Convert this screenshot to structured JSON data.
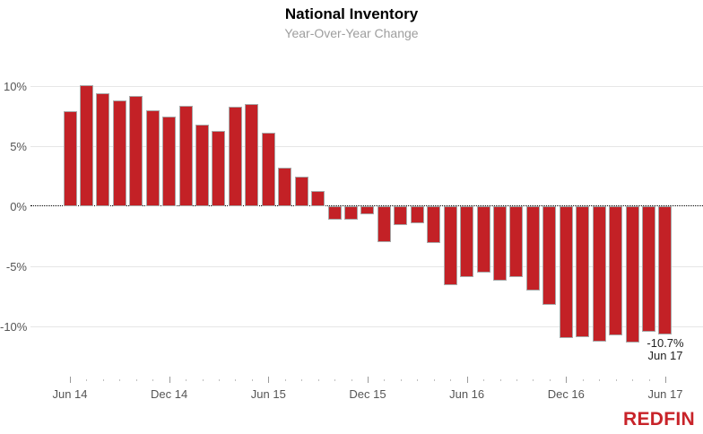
{
  "header": {
    "title": "National Inventory",
    "subtitle": "Year-Over-Year Change"
  },
  "annotation": {
    "value_label": "-10.7%",
    "date_label": "Jun 17"
  },
  "branding": {
    "logo_text": "REDFIN",
    "logo_color": "#c82329"
  },
  "chart_data": {
    "type": "bar",
    "title": "National Inventory",
    "subtitle": "Year-Over-Year Change",
    "categories": [
      "Jun 14",
      "Jul 14",
      "Aug 14",
      "Sep 14",
      "Oct 14",
      "Nov 14",
      "Dec 14",
      "Jan 15",
      "Feb 15",
      "Mar 15",
      "Apr 15",
      "May 15",
      "Jun 15",
      "Jul 15",
      "Aug 15",
      "Sep 15",
      "Oct 15",
      "Nov 15",
      "Dec 15",
      "Jan 16",
      "Feb 16",
      "Mar 16",
      "Apr 16",
      "May 16",
      "Jun 16",
      "Jul 16",
      "Aug 16",
      "Sep 16",
      "Oct 16",
      "Nov 16",
      "Dec 16",
      "Jan 17",
      "Feb 17",
      "Mar 17",
      "Apr 17",
      "May 17",
      "Jun 17"
    ],
    "values": [
      7.9,
      10.1,
      9.4,
      8.8,
      9.2,
      8.0,
      7.5,
      8.4,
      6.8,
      6.3,
      8.3,
      8.5,
      6.1,
      3.2,
      2.5,
      1.3,
      -1.1,
      -1.1,
      -0.7,
      -3.0,
      -1.6,
      -1.4,
      -3.1,
      -6.6,
      -5.9,
      -5.5,
      -6.2,
      -5.9,
      -7.0,
      -8.2,
      -11.0,
      -10.9,
      -11.3,
      -10.8,
      -11.4,
      -10.5,
      -10.7
    ],
    "xlabel": "",
    "ylabel": "",
    "x_tick_labels": [
      "Jun 14",
      "Dec 14",
      "Jun 15",
      "Dec 15",
      "Jun 16",
      "Dec 16",
      "Jun 17"
    ],
    "x_tick_every": 6,
    "y_ticks": [
      10,
      5,
      0,
      -5,
      -10
    ],
    "y_tick_labels": [
      "10%",
      "5%",
      "0%",
      "-5%",
      "-10%"
    ],
    "ylim": [
      -12.5,
      12.5
    ],
    "grid": true,
    "legend": false,
    "zero_line_style": "dotted",
    "bar_color": "#c32126",
    "bar_border_color": "#a8a8a8",
    "grid_color": "#e6e6e6",
    "axis_text_color": "#555555",
    "annotation_last_point": "-10.7%"
  }
}
